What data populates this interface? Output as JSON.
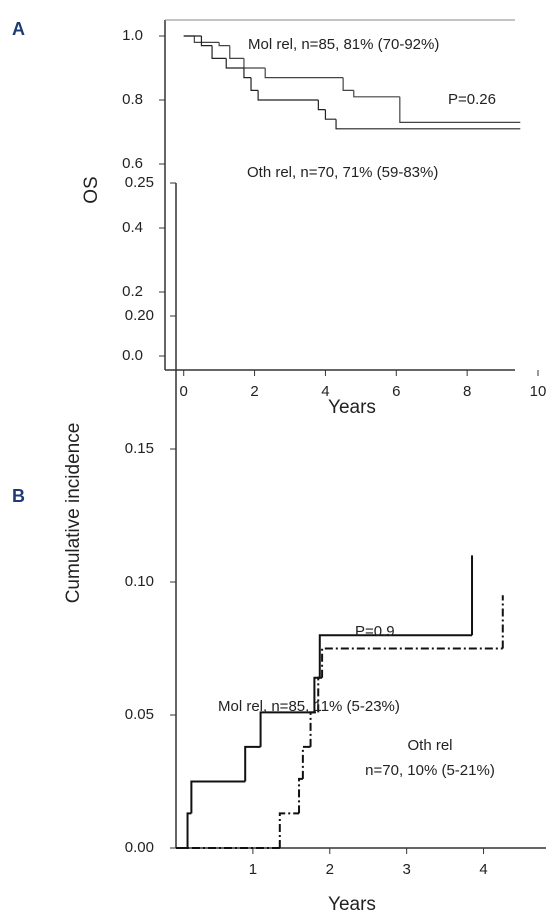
{
  "chart_data": [
    {
      "type": "step",
      "label": "A",
      "xlabel": "Years",
      "ylabel": "OS",
      "xlim": [
        -0.5,
        10
      ],
      "ylim": [
        -0.05,
        1.05
      ],
      "xticks": [
        0,
        2,
        4,
        6,
        8,
        10
      ],
      "yticks": [
        {
          "value": 0,
          "label": "0.0"
        },
        0.2,
        0.4,
        0.6,
        0.8,
        {
          "value": 1,
          "label": "1.0"
        }
      ],
      "series": [
        {
          "color": "#444444",
          "dash": "solid",
          "x": [
            0,
            0.3,
            1,
            1.3,
            1.7,
            2.3,
            4.5,
            4.8,
            6.1,
            9.5
          ],
          "values": [
            1,
            0.98,
            0.97,
            0.93,
            0.9,
            0.87,
            0.83,
            0.81,
            0.73,
            0.73
          ]
        },
        {
          "color": "#222222",
          "dash": "solid",
          "x": [
            0,
            0.5,
            0.8,
            1.2,
            1.7,
            1.9,
            2.1,
            3.8,
            4.0,
            4.3,
            9.5
          ],
          "values": [
            1,
            0.97,
            0.93,
            0.9,
            0.87,
            0.83,
            0.8,
            0.77,
            0.74,
            0.71,
            0.71
          ]
        }
      ],
      "annotations": [
        "Mol rel, n=85, 81% (70-92%)",
        "P=0.26",
        "Oth rel, n=70, 71% (59-83%)"
      ]
    },
    {
      "type": "step",
      "label": "B",
      "xlabel": "Years",
      "ylabel": "Cumulative incidence",
      "xlim": [
        0,
        4.5
      ],
      "ylim": [
        0,
        0.25
      ],
      "xticks": [
        1,
        2,
        3,
        4
      ],
      "yticks": [
        {
          "value": 0,
          "label": "0.00"
        },
        {
          "value": 0.05,
          "label": "0.05"
        },
        {
          "value": 0.1,
          "label": "0.10"
        },
        {
          "value": 0.15,
          "label": "0.15"
        },
        {
          "value": 0.2,
          "label": "0.20"
        },
        {
          "value": 0.25,
          "label": "0.25"
        }
      ],
      "series": [
        {
          "color": "#111111",
          "dash": "solid",
          "x": [
            0,
            0.15,
            0.2,
            0.9,
            1.1,
            1.8,
            1.87,
            3.85
          ],
          "values": [
            0,
            0.013,
            0.025,
            0.038,
            0.051,
            0.064,
            0.08,
            0.11
          ]
        },
        {
          "color": "#111111",
          "dash": "dashdot",
          "x": [
            0,
            1.35,
            1.6,
            1.65,
            1.75,
            1.85,
            1.9,
            4.25
          ],
          "values": [
            0,
            0.013,
            0.026,
            0.038,
            0.051,
            0.064,
            0.075,
            0.095
          ]
        }
      ],
      "annotations": [
        "P=0.9",
        "Mol rel, n=85, 11% (5-23%)",
        "Oth rel",
        "n=70, 10% (5-21%)"
      ]
    }
  ]
}
